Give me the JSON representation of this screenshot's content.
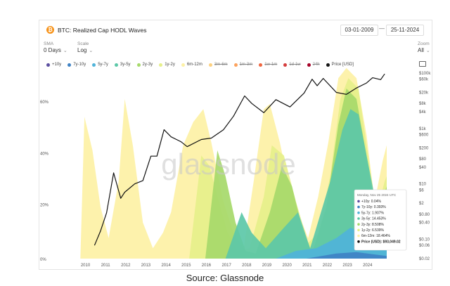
{
  "header": {
    "title": "BTC: Realized Cap HODL Waves",
    "icon": "bitcoin-icon",
    "icon_glyph": "₿"
  },
  "date_range": {
    "start": "03-01-2009",
    "separator": "—",
    "end": "25-11-2024"
  },
  "controls": {
    "sma": {
      "label": "SMA",
      "value": "0 Days"
    },
    "scale": {
      "label": "Scale",
      "value": "Log"
    },
    "zoom": {
      "label": "Zoom",
      "value": "All"
    }
  },
  "source_caption": "Source: Glassnode",
  "watermark": "glassnode",
  "chart_data": {
    "type": "area",
    "x_ticks": [
      "2010",
      "2011",
      "2012",
      "2013",
      "2014",
      "2015",
      "2016",
      "2017",
      "2018",
      "2019",
      "2020",
      "2021",
      "2022",
      "2023",
      "2024"
    ],
    "y_left_ticks": [
      "60%",
      "40%",
      "20%",
      "0%"
    ],
    "y_right_ticks": [
      "$100k",
      "$60k",
      "$20k",
      "$8k",
      "$4k",
      "$1k",
      "$600",
      "$200",
      "$80",
      "$40",
      "$10",
      "$6",
      "$2",
      "$0.80",
      "$0.40",
      "$0.10",
      "$0.06",
      "$0.02"
    ],
    "legend": [
      {
        "name": "+10y",
        "color": "#5b4ea0",
        "active": true
      },
      {
        "name": "7y-10y",
        "color": "#3f82c4",
        "active": true
      },
      {
        "name": "5y-7y",
        "color": "#4fb3d9",
        "active": true
      },
      {
        "name": "3y-5y",
        "color": "#5cc8a8",
        "active": true
      },
      {
        "name": "2y-3y",
        "color": "#a6d96a",
        "active": true
      },
      {
        "name": "1y-2y",
        "color": "#e6f08a",
        "active": true
      },
      {
        "name": "6m-12m",
        "color": "#fdf1a5",
        "active": true
      },
      {
        "name": "3m-6m",
        "color": "#fdd17f",
        "active": false
      },
      {
        "name": "1m-3m",
        "color": "#fca25d",
        "active": false
      },
      {
        "name": "1w-1m",
        "color": "#f0663f",
        "active": false
      },
      {
        "name": "1d-1w",
        "color": "#d43c3c",
        "active": false
      },
      {
        "name": "24h",
        "color": "#a50026",
        "active": false
      },
      {
        "name": "Price [USD]",
        "color": "#111111",
        "active": true
      }
    ],
    "price_series": {
      "name": "Price [USD]",
      "x": [
        2010.5,
        2010.8,
        2011.1,
        2011.45,
        2011.8,
        2012.0,
        2012.5,
        2012.9,
        2013.3,
        2013.6,
        2013.95,
        2014.3,
        2014.8,
        2015.1,
        2015.8,
        2016.3,
        2016.9,
        2017.4,
        2017.95,
        2018.3,
        2018.9,
        2019.5,
        2020.2,
        2020.9,
        2021.3,
        2021.55,
        2021.85,
        2022.5,
        2023.0,
        2023.5,
        2024.0,
        2024.3,
        2024.7,
        2024.9
      ],
      "y": [
        0.06,
        0.2,
        0.9,
        25,
        3,
        5,
        10,
        13,
        100,
        100,
        900,
        500,
        330,
        220,
        400,
        450,
        900,
        2800,
        15000,
        8000,
        3700,
        11000,
        6000,
        19000,
        60000,
        35000,
        64000,
        20000,
        17000,
        29000,
        44000,
        68000,
        58000,
        93000
      ]
    },
    "tooltip": {
      "date": "Monday, Nov 25 2024 UTC",
      "rows": [
        {
          "label": "+10y: 0.04%",
          "color": "#5b4ea0"
        },
        {
          "label": "7y-10y: 0.393%",
          "color": "#3f82c4"
        },
        {
          "label": "5y-7y: 1.907%",
          "color": "#4fb3d9"
        },
        {
          "label": "3y-5y: 14.453%",
          "color": "#5cc8a8"
        },
        {
          "label": "2y-3y: 8.508%",
          "color": "#a6d96a"
        },
        {
          "label": "1y-2y: 6.539%",
          "color": "#e6f08a"
        },
        {
          "label": "6m-12m: 18.464%",
          "color": "#fdf1a5"
        },
        {
          "label": "Price (USD): $93,049.02",
          "color": "#111111",
          "bold": true
        }
      ]
    }
  }
}
